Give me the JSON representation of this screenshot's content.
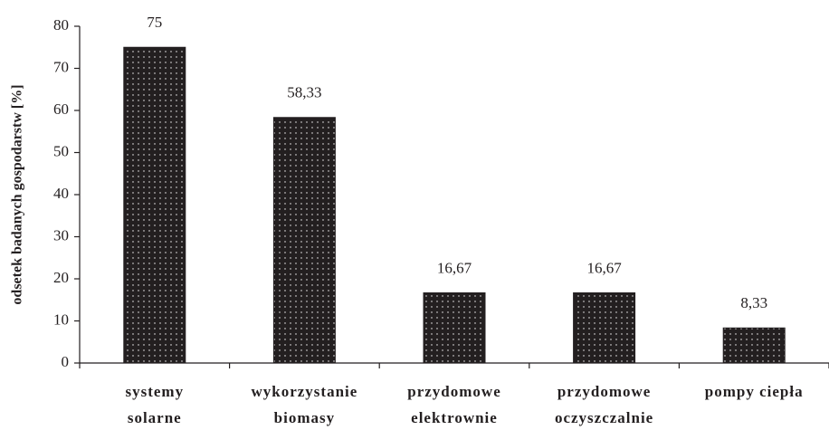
{
  "chart_data": {
    "type": "bar",
    "y_label": "odsetek badanych gospodarstw [%]",
    "categories": [
      [
        "systemy",
        "solarne"
      ],
      [
        "wykorzystanie",
        "biomasy"
      ],
      [
        "przydomowe",
        "elektrownie"
      ],
      [
        "przydomowe",
        "oczyszczalnie"
      ],
      [
        "pompy ciepła"
      ]
    ],
    "values": [
      75,
      58.33,
      16.67,
      16.67,
      8.33
    ],
    "value_labels": [
      "75",
      "58,33",
      "16,67",
      "16,67",
      "8,33"
    ],
    "color": "#231f20",
    "ylim": [
      0,
      80
    ],
    "yticks": [
      0,
      10,
      20,
      30,
      40,
      50,
      60,
      70,
      80
    ],
    "grid": false
  }
}
